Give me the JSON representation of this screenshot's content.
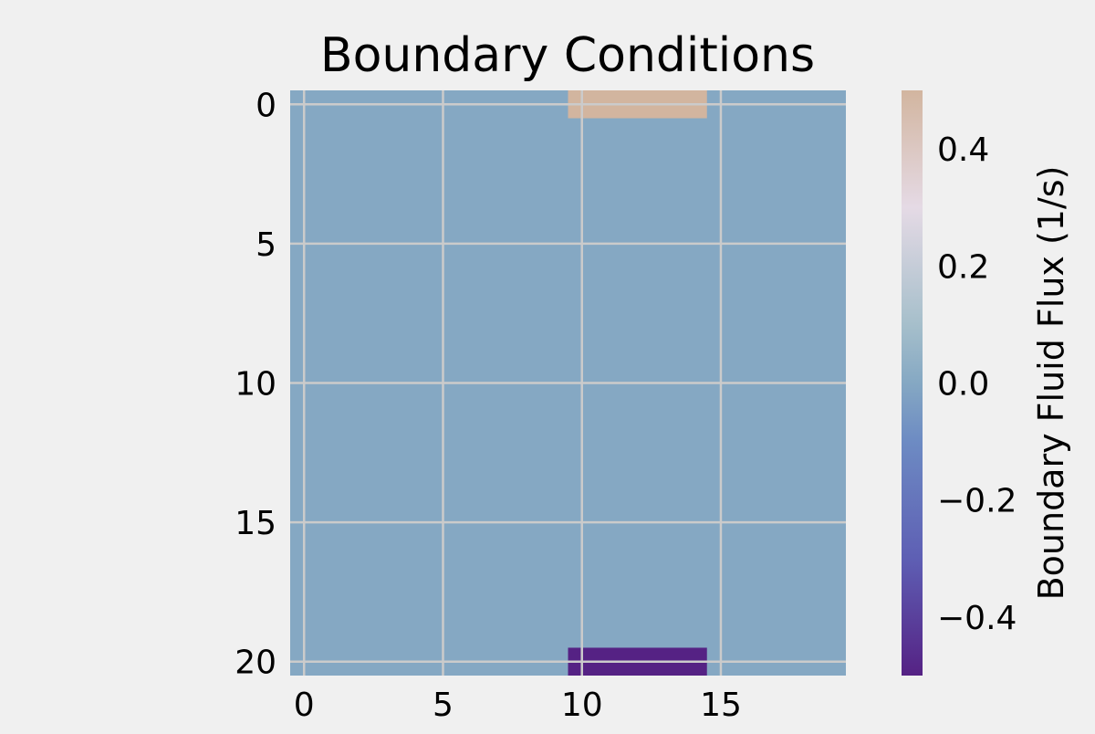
{
  "chart_data": {
    "type": "heatmap",
    "title": "Boundary Conditions",
    "grid": true,
    "grid_shape": {
      "rows": 21,
      "cols": 20
    },
    "x_ticks": [
      0,
      5,
      10,
      15
    ],
    "y_ticks": [
      0,
      5,
      10,
      15,
      20
    ],
    "xlim": [
      -0.5,
      19.5
    ],
    "ylim": [
      20.5,
      -0.5
    ],
    "background_value": 0.0,
    "cells": [
      {
        "row": 0,
        "col_start": 10,
        "col_end": 14,
        "value": 0.5
      },
      {
        "row": 20,
        "col_start": 10,
        "col_end": 14,
        "value": -0.5
      }
    ],
    "colorbar": {
      "label": "Boundary Fluid Flux (1/s)",
      "vmin": -0.5,
      "vmax": 0.5,
      "ticks": [
        -0.4,
        -0.2,
        0.0,
        0.2,
        0.4
      ],
      "tick_labels": [
        "−0.4",
        "−0.2",
        "0.0",
        "0.2",
        "0.4"
      ],
      "colormap_stops": [
        {
          "value": -0.5,
          "color": "#552284"
        },
        {
          "value": -0.3,
          "color": "#5e5fb4"
        },
        {
          "value": -0.1,
          "color": "#6d8bc3"
        },
        {
          "value": 0.0,
          "color": "#85a8c3"
        },
        {
          "value": 0.1,
          "color": "#a6bfcb"
        },
        {
          "value": 0.3,
          "color": "#e5dae5"
        },
        {
          "value": 0.5,
          "color": "#d2b59f"
        }
      ]
    },
    "colors": {
      "figure_background": "#f0f0f0",
      "grid": "#cbcbcb"
    }
  }
}
